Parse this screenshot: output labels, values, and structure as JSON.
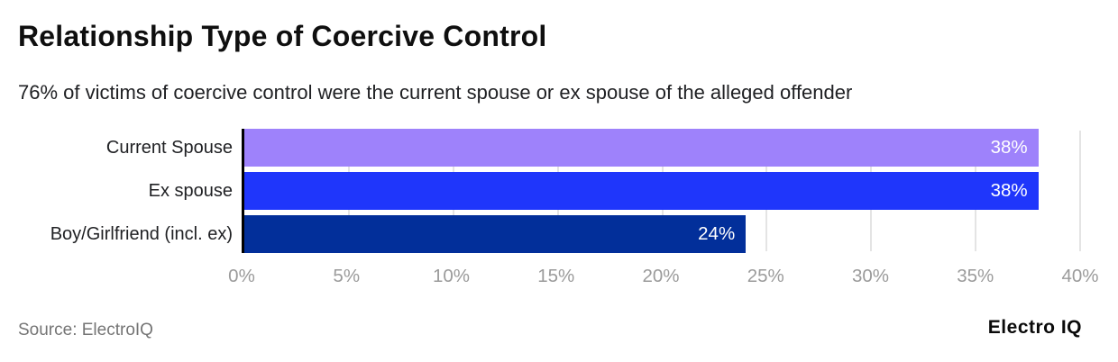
{
  "header": {
    "title": "Relationship Type of Coercive Control",
    "subtitle": "76% of victims of coercive control were the current spouse or ex spouse of the alleged offender"
  },
  "chart_data": {
    "type": "bar",
    "orientation": "horizontal",
    "title": "Relationship Type of Coercive Control",
    "subtitle": "76% of victims of coercive control were the current spouse or ex spouse of the alleged offender",
    "categories": [
      "Current Spouse",
      "Ex spouse",
      "Boy/Girlfriend (incl. ex)"
    ],
    "values": [
      38,
      38,
      24
    ],
    "value_labels": [
      "38%",
      "38%",
      "24%"
    ],
    "bar_colors": [
      "#9e82fb",
      "#1f36fb",
      "#022f9a"
    ],
    "xlim": [
      0,
      40
    ],
    "xticks": [
      0,
      5,
      10,
      15,
      20,
      25,
      30,
      35,
      40
    ],
    "xtick_labels": [
      "0%",
      "5%",
      "10%",
      "15%",
      "20%",
      "25%",
      "30%",
      "35%",
      "40%"
    ],
    "grid": true,
    "legend": "none",
    "value_label_position": "inside-end",
    "value_label_color": "#ffffff",
    "axis_line_color": "#000000",
    "gridline_color": "#e4e4e4",
    "tick_label_color": "#9b9b9b"
  },
  "footer": {
    "source": "Source: ElectroIQ",
    "brand": "Electro IQ"
  }
}
